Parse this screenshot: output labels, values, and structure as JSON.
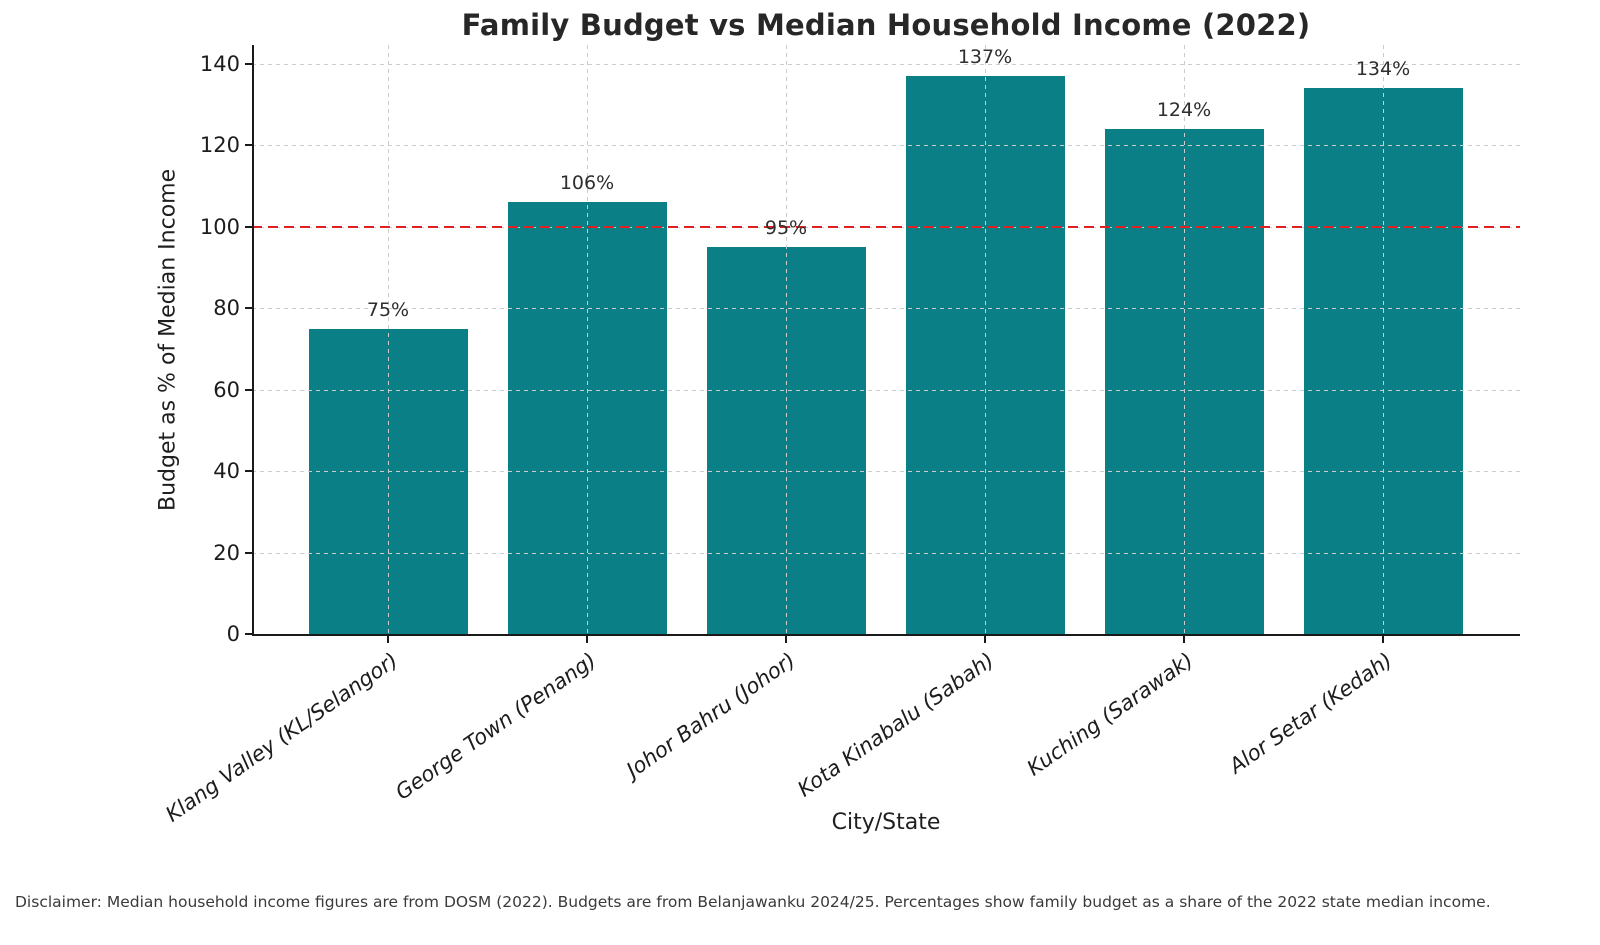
{
  "chart_data": {
    "type": "bar",
    "title": "Family Budget vs Median Household Income (2022)",
    "xlabel": "City/State",
    "ylabel": "Budget as % of Median Income",
    "categories": [
      "Klang Valley (KL/Selangor)",
      "George Town (Penang)",
      "Johor Bahru (Johor)",
      "Kota Kinabalu (Sabah)",
      "Kuching (Sarawak)",
      "Alor Setar (Kedah)"
    ],
    "values": [
      75,
      106,
      95,
      137,
      124,
      134
    ],
    "value_labels": [
      "75%",
      "106%",
      "95%",
      "137%",
      "124%",
      "134%"
    ],
    "ylim": [
      0,
      145
    ],
    "yticks": [
      0,
      20,
      40,
      60,
      80,
      100,
      120,
      140
    ],
    "grid": true,
    "legend": "none",
    "bar_color": "#0b7f86",
    "reference_line": {
      "value": 100,
      "color": "#dd2222",
      "style": "dashed"
    }
  },
  "footer": {
    "disclaimer": "Disclaimer: Median household income figures are from DOSM (2022). Budgets are from Belanjawanku 2024/25. Percentages show family budget as a share of the 2022 state median income."
  }
}
